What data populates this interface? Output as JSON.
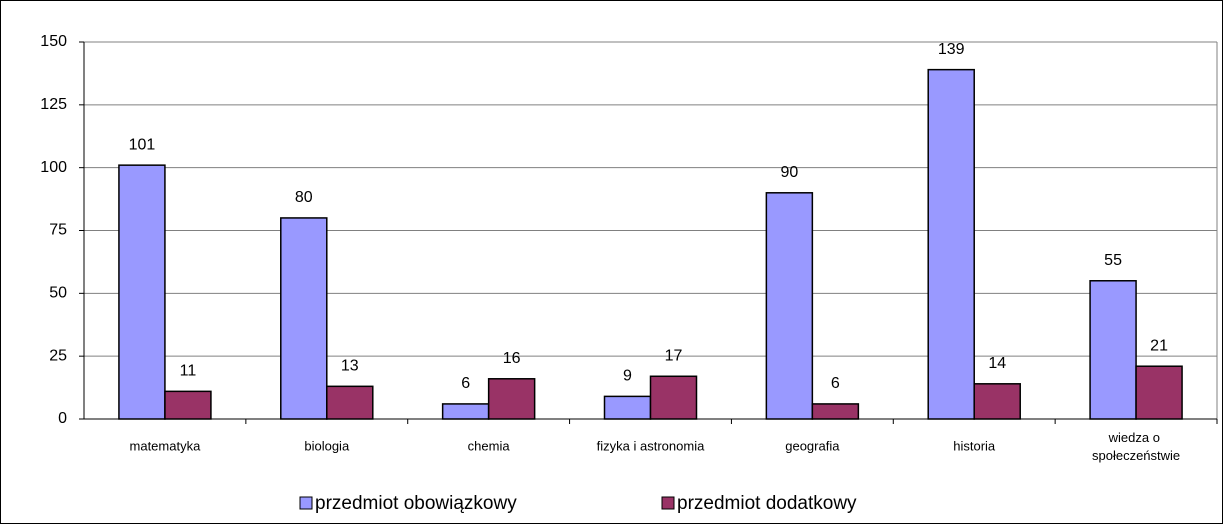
{
  "chart_data": {
    "type": "bar",
    "categories": [
      "matematyka",
      "biologia",
      "chemia",
      "fizyka i astronomia",
      "geografia",
      "historia",
      "wiedza o społeczeństwie"
    ],
    "series": [
      {
        "name": "przedmiot obowiązkowy",
        "color": "#9999ff",
        "values": [
          101,
          80,
          6,
          9,
          90,
          139,
          55
        ]
      },
      {
        "name": "przedmiot dodatkowy",
        "color": "#993366",
        "values": [
          11,
          13,
          16,
          17,
          6,
          14,
          21
        ]
      }
    ],
    "ylim": [
      0,
      150
    ],
    "yticks": [
      0,
      25,
      50,
      75,
      100,
      125,
      150
    ],
    "grid": true,
    "legend": "bottom"
  }
}
